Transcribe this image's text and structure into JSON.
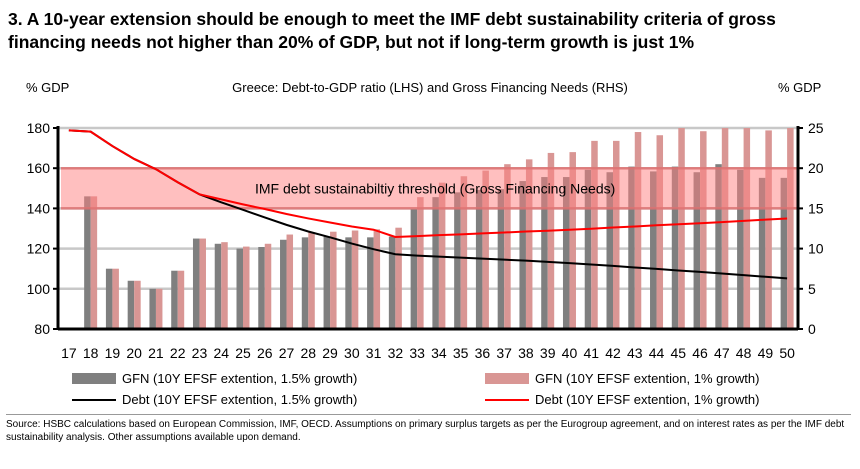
{
  "title": "3. A 10-year extension should be enough to meet the IMF debt sustainability criteria of gross financing needs not higher than 20% of GDP, but not if long-term growth is just 1%",
  "source": "Source: HSBC calculations based on European Commission, IMF, OECD. Assumptions on primary surplus targets as per the Eurogroup agreement, and on interest rates as per the IMF debt sustainability analysis. Other assumptions available upon demand.",
  "colors": {
    "gfn_15": "#7f7f7f",
    "gfn_1": "#d99694",
    "debt_15": "#000000",
    "debt_1": "#ff0000",
    "band": "#ff8080",
    "grid": "#c8c8c8"
  },
  "chart_data": {
    "type": "bar+line",
    "title": "Greece: Debt-to-GDP ratio (LHS) and Gross Financing Needs (RHS)",
    "ylabel_left": "% GDP",
    "ylabel_right": "% GDP",
    "ylim_left": [
      80,
      180
    ],
    "ylim_right": [
      0,
      25
    ],
    "yticks_left": [
      80,
      100,
      120,
      140,
      160,
      180
    ],
    "yticks_right": [
      0,
      5,
      10,
      15,
      20,
      25
    ],
    "grid": true,
    "categories": [
      "17",
      "18",
      "19",
      "20",
      "21",
      "22",
      "23",
      "24",
      "25",
      "26",
      "27",
      "28",
      "29",
      "30",
      "31",
      "32",
      "33",
      "34",
      "35",
      "36",
      "37",
      "38",
      "39",
      "40",
      "41",
      "42",
      "43",
      "44",
      "45",
      "46",
      "47",
      "48",
      "49",
      "50"
    ],
    "threshold_band": {
      "label": "IMF debt sustainabiltiy threshold (Gross Financing Needs)",
      "axis": "right",
      "range": [
        15,
        20
      ]
    },
    "series": [
      {
        "name": "GFN (10Y EFSF extention, 1.5% growth)",
        "type": "bar",
        "axis": "right",
        "values": [
          null,
          16.5,
          7.5,
          6.0,
          5.0,
          7.25,
          11.25,
          10.6,
          10.0,
          10.2,
          11.1,
          11.4,
          11.5,
          11.4,
          11.4,
          11.5,
          14.9,
          16.4,
          17.0,
          17.3,
          17.4,
          18.4,
          18.9,
          18.9,
          19.8,
          19.5,
          20.2,
          19.6,
          20.2,
          19.5,
          20.5,
          19.8,
          18.8,
          18.8
        ]
      },
      {
        "name": "GFN (10Y EFSF extention, 1% growth)",
        "type": "bar",
        "axis": "right",
        "values": [
          null,
          16.5,
          7.5,
          6.0,
          5.0,
          7.25,
          11.25,
          10.8,
          10.25,
          10.6,
          11.75,
          12.0,
          12.1,
          12.25,
          12.4,
          12.6,
          16.4,
          18.2,
          19.0,
          19.7,
          20.5,
          21.1,
          21.9,
          22.0,
          23.4,
          23.4,
          24.5,
          24.1,
          25.0,
          24.6,
          25.0,
          25.0,
          24.7,
          25.0
        ]
      },
      {
        "name": "Debt (10Y EFSF extention, 1.5% growth)",
        "type": "line",
        "axis": "left",
        "values": [
          178.8,
          178.2,
          171,
          164.6,
          159.5,
          153,
          147,
          143,
          139.3,
          135.5,
          131.8,
          128.5,
          125.6,
          122.5,
          119.7,
          117.2,
          116.5,
          116.0,
          115.5,
          115.0,
          114.5,
          114.0,
          113.4,
          112.8,
          112.1,
          111.4,
          110.6,
          109.9,
          109.1,
          108.4,
          107.6,
          106.8,
          106.0,
          105.2
        ]
      },
      {
        "name": "Debt (10Y EFSF extention, 1% growth)",
        "type": "line",
        "axis": "left",
        "values": [
          178.8,
          178.2,
          171,
          164.6,
          159.5,
          153,
          147,
          144.5,
          142,
          139.7,
          137.2,
          135,
          133,
          131,
          129.4,
          125.8,
          126.2,
          126.7,
          127.1,
          127.6,
          128.0,
          128.5,
          128.9,
          129.4,
          129.9,
          130.5,
          131.0,
          131.6,
          132.1,
          132.6,
          133.2,
          133.8,
          134.4,
          135.0
        ]
      }
    ]
  }
}
